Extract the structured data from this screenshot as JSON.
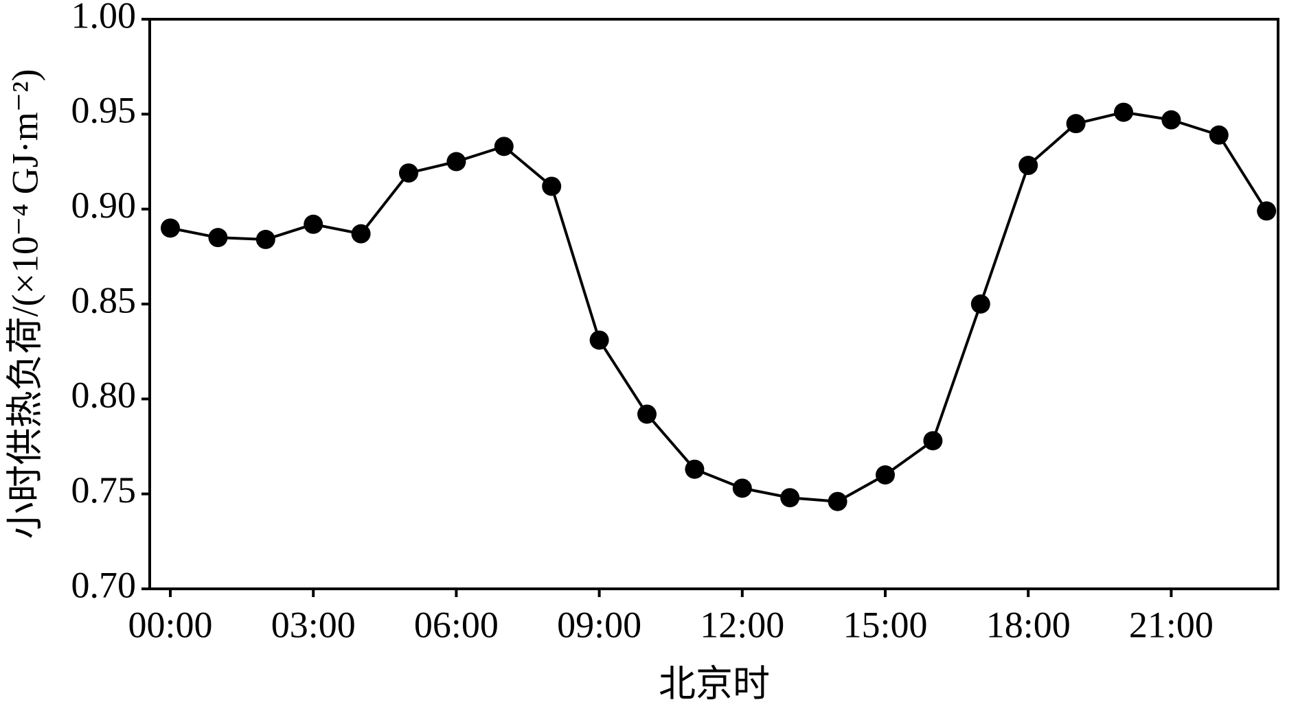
{
  "chart_data": {
    "type": "line",
    "xlabel": "北京时",
    "ylabel": "小时供热负荷/(×10⁻⁴ GJ·m⁻²)",
    "categories": [
      "00:00",
      null,
      null,
      "03:00",
      null,
      null,
      "06:00",
      null,
      null,
      "09:00",
      null,
      null,
      "12:00",
      null,
      null,
      "15:00",
      null,
      null,
      "18:00",
      null,
      null,
      "21:00",
      null,
      null
    ],
    "series": [
      {
        "color": "#000000",
        "values": [
          0.89,
          0.885,
          0.884,
          0.892,
          0.887,
          0.919,
          0.925,
          0.933,
          0.912,
          0.831,
          0.792,
          0.763,
          0.753,
          0.748,
          0.746,
          0.76,
          0.778,
          0.85,
          0.923,
          0.945,
          0.951,
          0.947,
          0.939,
          0.899
        ]
      }
    ],
    "ylim": [
      0.7,
      1.0
    ],
    "yticks": [
      {
        "value": 0.7,
        "label": "0.70"
      },
      0.75,
      {
        "value": 0.8,
        "label": "0.80"
      },
      0.85,
      {
        "value": 0.9,
        "label": "0.90"
      },
      0.95,
      {
        "value": 1.0,
        "label": "1.00"
      }
    ]
  }
}
